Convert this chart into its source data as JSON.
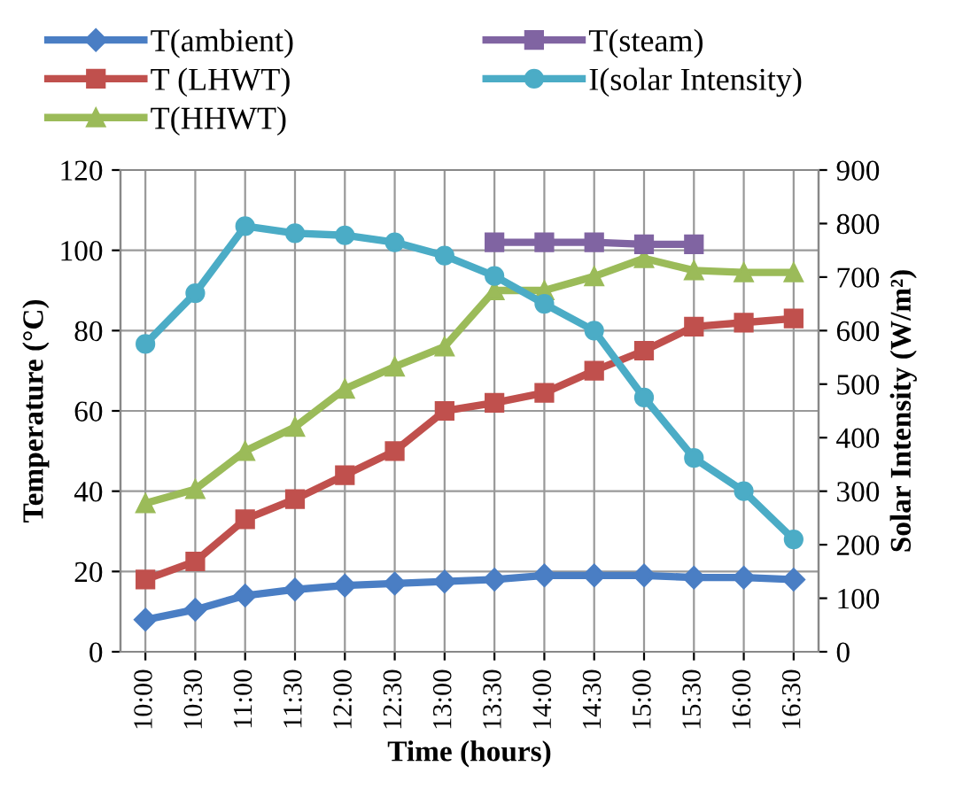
{
  "chart_data": {
    "type": "line",
    "xlabel": "Time (hours)",
    "ylabel": "Temperature (°C)",
    "y2label": "Solar Intensity (W/m²)",
    "categories": [
      "10:00",
      "10:30",
      "11:00",
      "11:30",
      "12:00",
      "12:30",
      "13:00",
      "13:30",
      "14:00",
      "14:30",
      "15:00",
      "15:30",
      "16:00",
      "16:30"
    ],
    "series": [
      {
        "name": "T(ambient)",
        "color": "#4a7ec4",
        "marker": "diamond",
        "values": [
          8,
          10.5,
          14,
          15.5,
          16.5,
          17,
          17.5,
          18,
          19,
          19,
          19,
          18.5,
          18.5,
          18
        ]
      },
      {
        "name": "T (LHWT)",
        "color": "#c0504d",
        "marker": "square",
        "values": [
          18,
          22.5,
          33,
          38,
          44,
          50,
          60,
          62,
          64.5,
          70,
          75,
          81,
          82,
          83
        ]
      },
      {
        "name": "T(HHWT)",
        "color": "#9bbb59",
        "marker": "triangle",
        "values": [
          37,
          40.5,
          50,
          56,
          65.5,
          71,
          76,
          90,
          90,
          93.5,
          98,
          95,
          94.5,
          94.5
        ]
      },
      {
        "name": "T(steam)",
        "color": "#8064a2",
        "marker": "square",
        "values": [
          null,
          null,
          null,
          null,
          null,
          null,
          null,
          102,
          102,
          102,
          101.5,
          101.5,
          null,
          null
        ]
      },
      {
        "name": "I(solar Intensity)",
        "color": "#4bacc6",
        "marker": "circle",
        "axis": "y2",
        "values": [
          575,
          670,
          795,
          782,
          778,
          765,
          740,
          702,
          650,
          600,
          475,
          362,
          300,
          210
        ]
      }
    ],
    "ylim": [
      0,
      120
    ],
    "yticks": [
      0,
      20,
      40,
      60,
      80,
      100,
      120
    ],
    "y2lim": [
      0,
      900
    ],
    "y2ticks": [
      0,
      100,
      200,
      300,
      400,
      500,
      600,
      700,
      800,
      900
    ],
    "grid": true,
    "legend": "top",
    "line_style": "solid"
  }
}
